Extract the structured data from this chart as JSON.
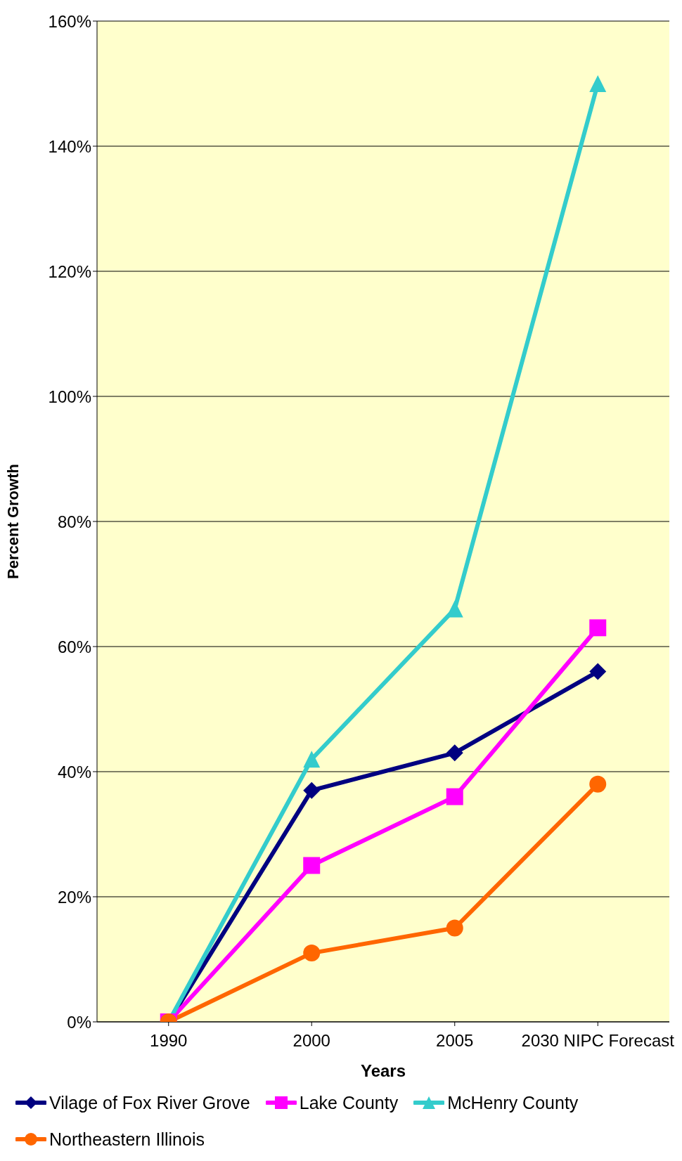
{
  "chart_data": {
    "type": "line",
    "xlabel": "Years",
    "ylabel": "Percent Growth",
    "categories": [
      "1990",
      "2000",
      "2005",
      "2030 NIPC Forecast"
    ],
    "series": [
      {
        "name": "Vilage of Fox River Grove",
        "color": "#000080",
        "marker": "diamond",
        "values": [
          0,
          37,
          43,
          56
        ]
      },
      {
        "name": "Lake County",
        "color": "#ff00ff",
        "marker": "square",
        "values": [
          0,
          25,
          36,
          63
        ]
      },
      {
        "name": "McHenry County",
        "color": "#33cccc",
        "marker": "triangle",
        "values": [
          0,
          42,
          66,
          150
        ]
      },
      {
        "name": "Northeastern Illinois",
        "color": "#ff6600",
        "marker": "circle",
        "values": [
          0,
          11,
          15,
          38
        ]
      }
    ],
    "ylim": [
      0,
      160
    ],
    "yticks": [
      {
        "value": 0,
        "label": "0%"
      },
      {
        "value": 20,
        "label": "20%"
      },
      {
        "value": 40,
        "label": "40%"
      },
      {
        "value": 60,
        "label": "60%"
      },
      {
        "value": 80,
        "label": "80%"
      },
      {
        "value": 100,
        "label": "100%"
      },
      {
        "value": 120,
        "label": "120%"
      },
      {
        "value": 140,
        "label": "140%"
      },
      {
        "value": 160,
        "label": "160%"
      }
    ],
    "grid": "y",
    "legend": "bottom"
  }
}
